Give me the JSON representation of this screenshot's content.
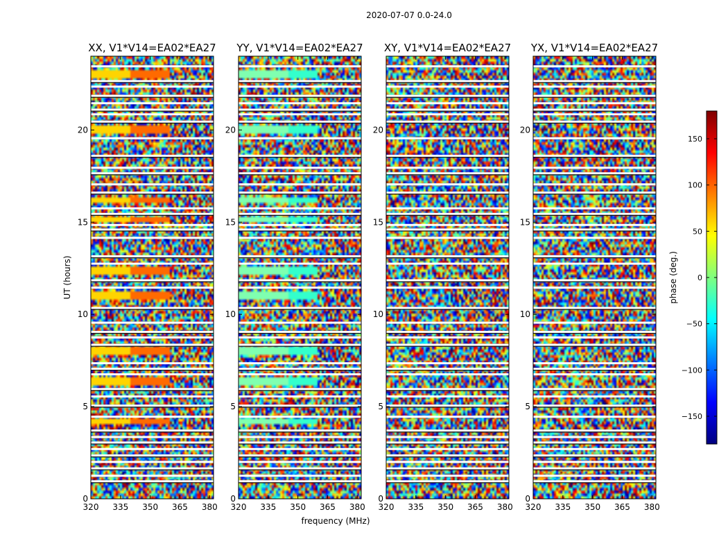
{
  "chart_data": {
    "type": "heatmap",
    "suptitle": "2020-07-07 0.0-24.0",
    "xlabel": "frequency (MHz)",
    "ylabel": "UT (hours)",
    "xlim": [
      320,
      382
    ],
    "ylim": [
      0,
      24
    ],
    "xticks": [
      "320",
      "335",
      "350",
      "365",
      "380"
    ],
    "xtick_values": [
      320,
      335,
      350,
      365,
      380
    ],
    "yticks": [
      "0",
      "5",
      "10",
      "15",
      "20"
    ],
    "ytick_values": [
      0,
      5,
      10,
      15,
      20
    ],
    "colormap": "jet",
    "panels": [
      {
        "title": "XX, V1*V14=EA02*EA27",
        "coherent_color": "#ff6a00",
        "coherent_until_mhz": 360,
        "fringe_from_mhz": 359
      },
      {
        "title": "YY, V1*V14=EA02*EA27",
        "coherent_color": "#33ffcc",
        "coherent_until_mhz": 360,
        "fringe_from_mhz": 359
      },
      {
        "title": "XY, V1*V14=EA02*EA27",
        "coherent_color": null,
        "coherent_until_mhz": 320,
        "fringe_from_mhz": 352
      },
      {
        "title": "YX, V1*V14=EA02*EA27",
        "coherent_color": null,
        "coherent_until_mhz": 320,
        "fringe_from_mhz": 352
      }
    ],
    "coherent_rows_ut": [
      [
        4.0,
        4.3
      ],
      [
        6.2,
        6.6
      ],
      [
        7.8,
        8.2
      ],
      [
        10.8,
        11.2
      ],
      [
        12.2,
        12.6
      ],
      [
        15.0,
        15.3
      ],
      [
        16.1,
        16.4
      ],
      [
        19.8,
        20.2
      ],
      [
        22.8,
        23.2
      ]
    ],
    "flagged_rows_ut": [
      0.95,
      1.25,
      1.65,
      2.0,
      2.35,
      2.7,
      3.05,
      3.35,
      3.7,
      4.45,
      5.05,
      5.55,
      5.95,
      6.75,
      7.05,
      7.35,
      8.35,
      8.75,
      9.05,
      9.55,
      10.35,
      11.45,
      11.85,
      12.75,
      13.15,
      14.15,
      14.6,
      14.85,
      15.45,
      15.75,
      16.6,
      17.05,
      17.65,
      17.95,
      18.6,
      19.55,
      20.45,
      20.85,
      21.1,
      21.45,
      21.85,
      22.35,
      22.65,
      23.45
    ],
    "colorbar": {
      "label": "phase (deg.)",
      "range": [
        -180,
        180
      ],
      "ticks": [
        "150",
        "100",
        "50",
        "0",
        "−50",
        "−100",
        "−150"
      ],
      "tick_values": [
        150,
        100,
        50,
        0,
        -50,
        -100,
        -150
      ]
    },
    "colorbar_stops": [
      "#00007f",
      "#0000ff",
      "#007fff",
      "#00ffff",
      "#7fff7f",
      "#ffff00",
      "#ff7f00",
      "#ff0000",
      "#7f0000"
    ]
  }
}
